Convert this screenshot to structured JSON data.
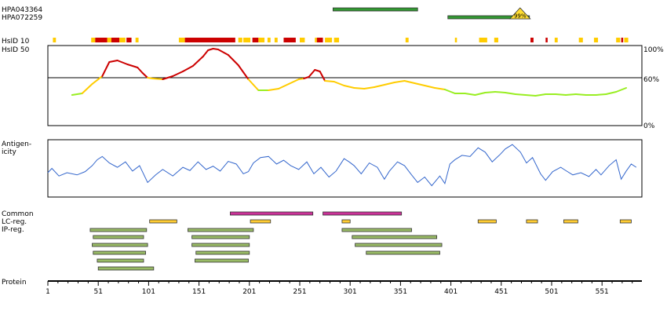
{
  "labels": {
    "antibodies": [
      "HPA043364",
      "HPA072259"
    ],
    "hsid": [
      "HsID 10",
      "HsID 50"
    ],
    "antigenicity": [
      "Antigen-",
      "icity"
    ],
    "tracks": [
      "Common",
      "LC-reg.",
      "IP-reg."
    ],
    "protein": "Protein"
  },
  "colors": {
    "antibody_bar": "#339933",
    "identity_high": "#cc0000",
    "identity_mid": "#ffcc00",
    "identity_low": "#99ee22",
    "antigenicity_line": "#3366cc",
    "common_bar": "#cc3399",
    "lc_bar": "#ffcc33",
    "ip_bar": "#99bb66",
    "badge": "#ffdd33"
  },
  "chart_data": {
    "type": "protein-feature-track",
    "x_axis": {
      "range": [
        1,
        590
      ],
      "tick_labels": [
        "1",
        "51",
        "101",
        "151",
        "201",
        "251",
        "301",
        "351",
        "401",
        "451",
        "501",
        "551"
      ],
      "tick_values": [
        1,
        51,
        101,
        151,
        201,
        251,
        301,
        351,
        401,
        451,
        501,
        551
      ]
    },
    "antibody_targets": [
      {
        "name": "HPA043364",
        "start": 284,
        "end": 368
      },
      {
        "name": "HPA072259",
        "start": 398,
        "end": 479,
        "badge": "99%"
      }
    ],
    "hsid10_blocks": [
      [
        6,
        9,
        "mid"
      ],
      [
        44,
        48,
        "mid"
      ],
      [
        48,
        60,
        "high"
      ],
      [
        60,
        64,
        "mid"
      ],
      [
        64,
        72,
        "high"
      ],
      [
        72,
        78,
        "mid"
      ],
      [
        79,
        84,
        "high"
      ],
      [
        88,
        91,
        "mid"
      ],
      [
        131,
        137,
        "mid"
      ],
      [
        137,
        187,
        "high"
      ],
      [
        190,
        194,
        "mid"
      ],
      [
        195,
        202,
        "mid"
      ],
      [
        204,
        210,
        "high"
      ],
      [
        210,
        216,
        "mid"
      ],
      [
        219,
        222,
        "mid"
      ],
      [
        226,
        229,
        "mid"
      ],
      [
        235,
        247,
        "high"
      ],
      [
        251,
        256,
        "mid"
      ],
      [
        266,
        268,
        "mid"
      ],
      [
        268,
        274,
        "high"
      ],
      [
        276,
        283,
        "mid"
      ],
      [
        285,
        290,
        "mid"
      ],
      [
        356,
        359,
        "mid"
      ],
      [
        405,
        407,
        "mid"
      ],
      [
        429,
        437,
        "mid"
      ],
      [
        444,
        448,
        "mid"
      ],
      [
        480,
        483,
        "high"
      ],
      [
        495,
        497,
        "high"
      ],
      [
        504,
        507,
        "mid"
      ],
      [
        528,
        532,
        "mid"
      ],
      [
        543,
        547,
        "mid"
      ],
      [
        565,
        569,
        "mid"
      ],
      [
        570,
        572,
        "high"
      ],
      [
        573,
        577,
        "mid"
      ]
    ],
    "identity_panel": {
      "ytick_labels": [
        "100%",
        "60%",
        "0%"
      ],
      "threshold_percent": 60,
      "profile_x": [
        25,
        35,
        45,
        55,
        62,
        70,
        80,
        90,
        95,
        100,
        105,
        115,
        125,
        135,
        145,
        155,
        160,
        165,
        170,
        180,
        190,
        200,
        205,
        210,
        220,
        230,
        240,
        250,
        255,
        260,
        266,
        271,
        276,
        285,
        295,
        305,
        315,
        325,
        335,
        345,
        355,
        365,
        375,
        385,
        395,
        405,
        415,
        425,
        435,
        445,
        455,
        465,
        475,
        485,
        495,
        505,
        515,
        525,
        535,
        545,
        555,
        565,
        575
      ],
      "profile_y": [
        38,
        40,
        52,
        62,
        80,
        82,
        77,
        73,
        66,
        60,
        59,
        58,
        62,
        68,
        75,
        87,
        95,
        97,
        96,
        89,
        76,
        58,
        51,
        44,
        44,
        46,
        52,
        58,
        59,
        61,
        70,
        68,
        56,
        55,
        50,
        47,
        46,
        48,
        51,
        54,
        56,
        53,
        50,
        47,
        45,
        40,
        40,
        38,
        41,
        42,
        41,
        39,
        38,
        37,
        39,
        39,
        38,
        39,
        38,
        38,
        39,
        42,
        47
      ]
    },
    "antigenicity_panel": {
      "y_range": [
        0,
        100
      ],
      "profile_x": [
        1,
        5,
        12,
        20,
        30,
        38,
        45,
        50,
        55,
        62,
        70,
        78,
        85,
        92,
        100,
        108,
        115,
        125,
        135,
        142,
        150,
        158,
        165,
        172,
        180,
        188,
        195,
        200,
        205,
        212,
        220,
        228,
        235,
        242,
        250,
        258,
        265,
        272,
        280,
        287,
        295,
        300,
        305,
        312,
        320,
        328,
        335,
        340,
        348,
        355,
        362,
        368,
        375,
        382,
        390,
        395,
        400,
        405,
        412,
        420,
        428,
        435,
        442,
        450,
        455,
        462,
        470,
        476,
        482,
        490,
        495,
        502,
        510,
        515,
        522,
        530,
        538,
        545,
        550,
        558,
        565,
        570,
        575,
        580,
        585
      ],
      "profile_y": [
        42,
        50,
        36,
        42,
        38,
        44,
        55,
        66,
        72,
        60,
        52,
        62,
        45,
        55,
        24,
        38,
        48,
        36,
        52,
        46,
        62,
        48,
        54,
        45,
        63,
        58,
        40,
        44,
        60,
        70,
        72,
        58,
        65,
        55,
        48,
        62,
        40,
        52,
        34,
        45,
        68,
        62,
        55,
        40,
        60,
        52,
        30,
        45,
        62,
        55,
        38,
        24,
        34,
        18,
        36,
        22,
        58,
        66,
        74,
        72,
        88,
        80,
        62,
        76,
        86,
        94,
        80,
        60,
        70,
        40,
        28,
        44,
        52,
        46,
        38,
        42,
        35,
        48,
        38,
        55,
        66,
        30,
        45,
        58,
        52
      ]
    },
    "common": [
      [
        182,
        264
      ],
      [
        274,
        352
      ]
    ],
    "lc_reg": [
      [
        102,
        129
      ],
      [
        202,
        222
      ],
      [
        293,
        301
      ],
      [
        428,
        446
      ],
      [
        476,
        487
      ],
      [
        513,
        527
      ],
      [
        569,
        580
      ]
    ],
    "ip_reg": [
      [
        43,
        99
      ],
      [
        140,
        205
      ],
      [
        293,
        362
      ],
      [
        46,
        96
      ],
      [
        144,
        201
      ],
      [
        303,
        387
      ],
      [
        45,
        100
      ],
      [
        144,
        201
      ],
      [
        306,
        392
      ],
      [
        46,
        98
      ],
      [
        148,
        201
      ],
      [
        317,
        390
      ],
      [
        50,
        96
      ],
      [
        147,
        200
      ],
      [
        51,
        106
      ]
    ]
  }
}
